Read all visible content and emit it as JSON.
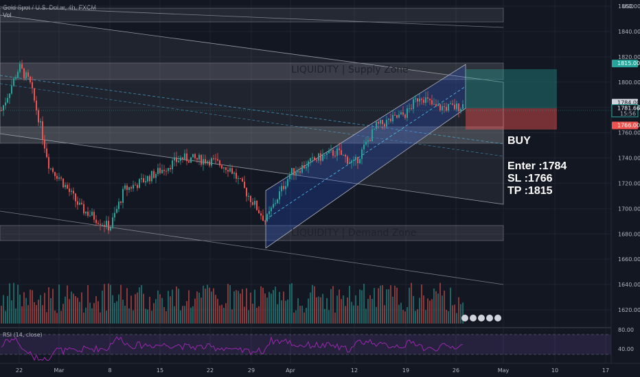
{
  "header": {
    "symbol_line": "Gold Spot / U.S. Dollar, 4h, FXCM",
    "volume_label": "Vol"
  },
  "currency": "USD",
  "price_axis": {
    "ticks": [
      "1860.00",
      "1840.00",
      "1820.00",
      "1800.00",
      "1780.00",
      "1760.00",
      "1740.00",
      "1720.00",
      "1700.00",
      "1680.00",
      "1660.00",
      "1640.00",
      "1620.00"
    ],
    "current_price": "1781.66",
    "countdown": "15:56"
  },
  "price_tags": [
    {
      "text": "1815.00",
      "color": "#26a69a"
    },
    {
      "text": "1784.00",
      "color": "#d1d4dc"
    },
    {
      "text": "1766.00",
      "color": "#ef5350"
    }
  ],
  "time_axis": [
    "22",
    "Mar",
    "8",
    "15",
    "22",
    "29",
    "Apr",
    "12",
    "19",
    "26",
    "May",
    "10",
    "17"
  ],
  "zones": {
    "supply": "LIQUIDITY  |  Supply Zone",
    "demand": "LIQUIDITY   |   Demand Zone"
  },
  "trade": {
    "direction": "BUY",
    "enter": "Enter :1784",
    "sl": "SL      :1766",
    "tp": "TP      :1815"
  },
  "rsi": {
    "label": "RSI (14, close)",
    "ticks": [
      "80.00",
      "40.00"
    ]
  },
  "colors": {
    "background": "#131722",
    "up": "#26a69a",
    "down": "#ef5350",
    "rsi": "#9c27b0",
    "channel_fill": "#2962ff"
  },
  "chart_data": {
    "type": "candlestick",
    "title": "Gold Spot / U.S. Dollar, 4h, FXCM",
    "ylim": [
      1610,
      1870
    ],
    "price_path": [
      {
        "x": "Feb 19",
        "y": 1775
      },
      {
        "x": "Feb 22",
        "y": 1812
      },
      {
        "x": "Feb 24",
        "y": 1800
      },
      {
        "x": "Feb 26",
        "y": 1770
      },
      {
        "x": "Feb 28",
        "y": 1733
      },
      {
        "x": "Mar 2",
        "y": 1725
      },
      {
        "x": "Mar 5",
        "y": 1700
      },
      {
        "x": "Mar 8",
        "y": 1685
      },
      {
        "x": "Mar 10",
        "y": 1715
      },
      {
        "x": "Mar 12",
        "y": 1720
      },
      {
        "x": "Mar 15",
        "y": 1730
      },
      {
        "x": "Mar 18",
        "y": 1740
      },
      {
        "x": "Mar 22",
        "y": 1738
      },
      {
        "x": "Mar 25",
        "y": 1732
      },
      {
        "x": "Mar 29",
        "y": 1690
      },
      {
        "x": "Mar 31",
        "y": 1710
      },
      {
        "x": "Apr 2",
        "y": 1728
      },
      {
        "x": "Apr 6",
        "y": 1740
      },
      {
        "x": "Apr 9",
        "y": 1745
      },
      {
        "x": "Apr 12",
        "y": 1735
      },
      {
        "x": "Apr 15",
        "y": 1765
      },
      {
        "x": "Apr 19",
        "y": 1775
      },
      {
        "x": "Apr 21",
        "y": 1790
      },
      {
        "x": "Apr 23",
        "y": 1780
      },
      {
        "x": "Apr 26",
        "y": 1780
      },
      {
        "x": "Apr 28",
        "y": 1782
      }
    ],
    "position": {
      "entry": 1784,
      "stop_loss": 1766,
      "take_profit": 1815
    }
  }
}
